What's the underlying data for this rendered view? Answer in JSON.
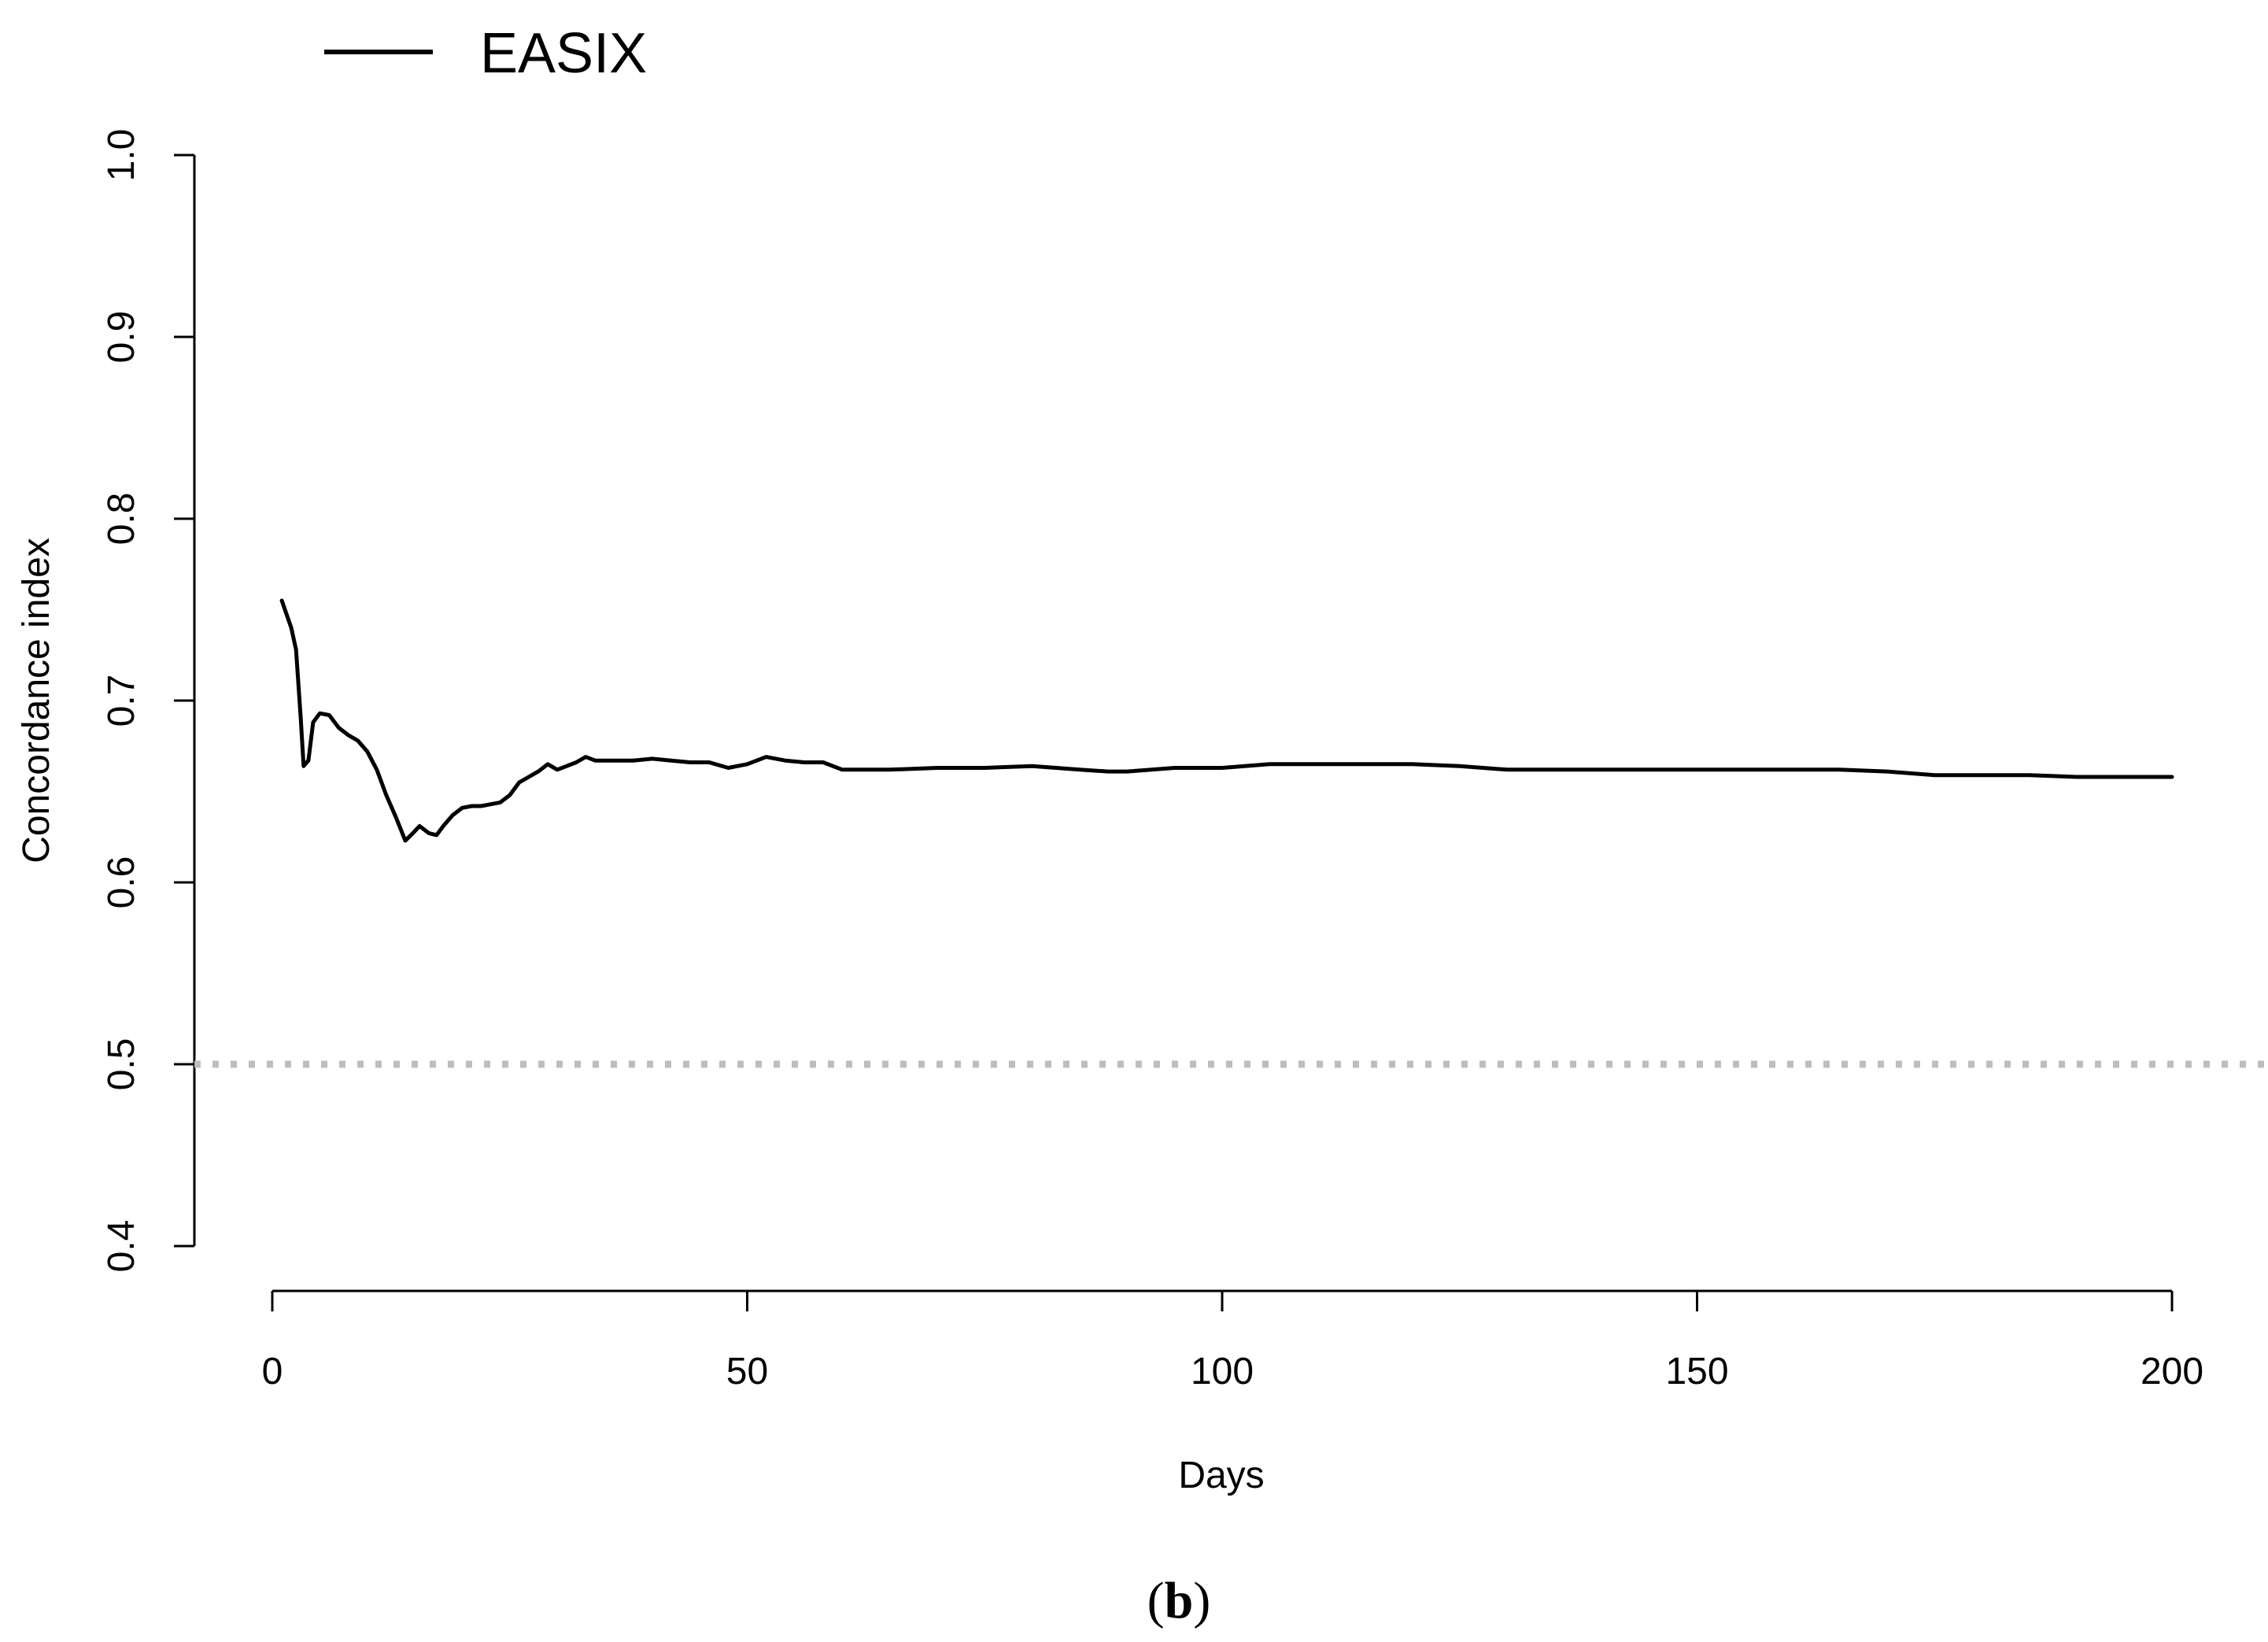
{
  "chart_data": {
    "type": "line",
    "xlabel": "Days",
    "ylabel": "Concordance index",
    "xlim": [
      0,
      200
    ],
    "ylim": [
      0.4,
      1.0
    ],
    "x_ticks": [
      0,
      50,
      100,
      150,
      200
    ],
    "x_tick_labels": [
      "0",
      "50",
      "100",
      "150",
      "200"
    ],
    "y_ticks": [
      0.4,
      0.5,
      0.6,
      0.7,
      0.8,
      0.9,
      1.0
    ],
    "y_tick_labels": [
      "0.4",
      "0.5",
      "0.6",
      "0.7",
      "0.8",
      "0.9",
      "1.0"
    ],
    "legend_position": "top-left",
    "grid": false,
    "series": [
      {
        "name": "EASIX",
        "color": "#000000",
        "style": "solid",
        "points": [
          [
            1,
            0.755
          ],
          [
            2,
            0.74
          ],
          [
            2.5,
            0.728
          ],
          [
            3,
            0.69
          ],
          [
            3.3,
            0.664
          ],
          [
            3.8,
            0.667
          ],
          [
            4.3,
            0.688
          ],
          [
            5,
            0.693
          ],
          [
            6,
            0.692
          ],
          [
            7,
            0.685
          ],
          [
            8,
            0.681
          ],
          [
            9,
            0.678
          ],
          [
            10,
            0.672
          ],
          [
            11,
            0.662
          ],
          [
            12,
            0.648
          ],
          [
            13,
            0.636
          ],
          [
            14,
            0.623
          ],
          [
            14.8,
            0.627
          ],
          [
            15.5,
            0.631
          ],
          [
            16.5,
            0.627
          ],
          [
            17.3,
            0.626
          ],
          [
            18,
            0.631
          ],
          [
            19,
            0.637
          ],
          [
            20,
            0.641
          ],
          [
            21,
            0.642
          ],
          [
            22,
            0.642
          ],
          [
            23,
            0.643
          ],
          [
            24,
            0.644
          ],
          [
            25,
            0.648
          ],
          [
            26,
            0.655
          ],
          [
            27,
            0.658
          ],
          [
            28,
            0.661
          ],
          [
            29,
            0.665
          ],
          [
            30,
            0.662
          ],
          [
            31,
            0.664
          ],
          [
            32,
            0.666
          ],
          [
            33,
            0.669
          ],
          [
            34,
            0.667
          ],
          [
            36,
            0.667
          ],
          [
            38,
            0.667
          ],
          [
            40,
            0.668
          ],
          [
            42,
            0.667
          ],
          [
            44,
            0.666
          ],
          [
            46,
            0.666
          ],
          [
            48,
            0.663
          ],
          [
            50,
            0.665
          ],
          [
            52,
            0.669
          ],
          [
            54,
            0.667
          ],
          [
            56,
            0.666
          ],
          [
            58,
            0.666
          ],
          [
            60,
            0.662
          ],
          [
            65,
            0.662
          ],
          [
            70,
            0.663
          ],
          [
            75,
            0.663
          ],
          [
            80,
            0.664
          ],
          [
            85,
            0.662
          ],
          [
            88,
            0.661
          ],
          [
            90,
            0.661
          ],
          [
            95,
            0.663
          ],
          [
            100,
            0.663
          ],
          [
            105,
            0.665
          ],
          [
            110,
            0.665
          ],
          [
            115,
            0.665
          ],
          [
            120,
            0.665
          ],
          [
            125,
            0.664
          ],
          [
            130,
            0.662
          ],
          [
            135,
            0.662
          ],
          [
            140,
            0.662
          ],
          [
            145,
            0.662
          ],
          [
            150,
            0.662
          ],
          [
            155,
            0.662
          ],
          [
            160,
            0.662
          ],
          [
            165,
            0.662
          ],
          [
            170,
            0.661
          ],
          [
            175,
            0.659
          ],
          [
            180,
            0.659
          ],
          [
            185,
            0.659
          ],
          [
            190,
            0.658
          ],
          [
            195,
            0.658
          ],
          [
            200,
            0.658
          ]
        ]
      }
    ],
    "reference_lines": [
      {
        "axis": "y",
        "value": 0.5,
        "color": "#bdbdbd",
        "style": "dotted"
      }
    ]
  },
  "panel_label": {
    "open": "(",
    "letter": "b",
    "close": ")"
  }
}
